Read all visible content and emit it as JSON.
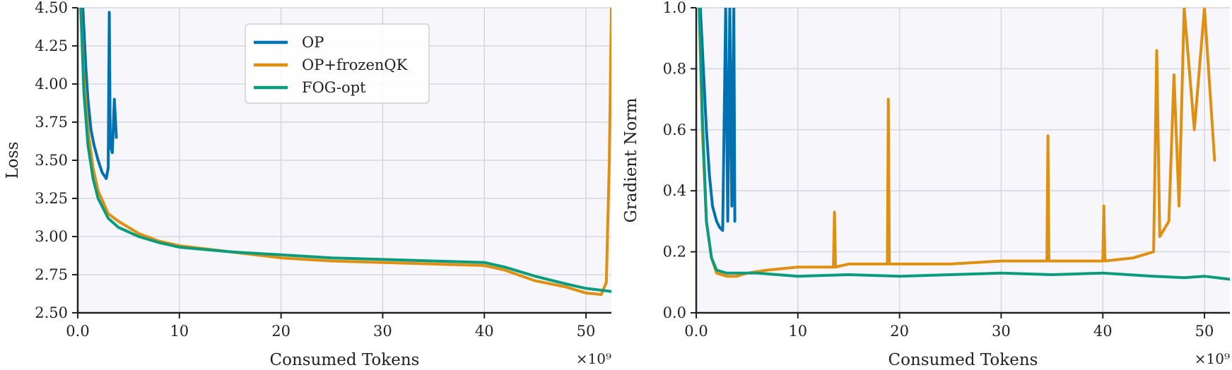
{
  "figure": {
    "exponent_label_left": "×10⁹",
    "exponent_label_right": "×10⁹"
  },
  "colors": {
    "OP": "#0072b2",
    "OP+frozenQK": "#e09010",
    "FOG-opt": "#0a9c7c",
    "plot_background": "#f6f6fb",
    "grid": "#d6d6dc"
  },
  "chart_data": [
    {
      "type": "line",
      "title": "",
      "xlabel": "Consumed Tokens",
      "ylabel": "Loss",
      "x_multiplier": "×10⁹",
      "xlim": [
        0,
        52.5
      ],
      "ylim": [
        2.5,
        4.5
      ],
      "xticks": [
        0,
        10,
        20,
        30,
        40,
        50
      ],
      "xtick_labels": [
        "0.0",
        "10",
        "20",
        "30",
        "40",
        "50"
      ],
      "yticks": [
        2.5,
        2.75,
        3.0,
        3.25,
        3.5,
        3.75,
        4.0,
        4.25,
        4.5
      ],
      "ytick_labels": [
        "2.50",
        "2.75",
        "3.00",
        "3.25",
        "3.50",
        "3.75",
        "4.00",
        "4.25",
        "4.50"
      ],
      "grid": true,
      "legend": {
        "position": "top-center",
        "entries": [
          "OP",
          "OP+frozenQK",
          "FOG-opt"
        ]
      },
      "series": [
        {
          "name": "OP",
          "x": [
            0.5,
            0.8,
            1.0,
            1.3,
            1.6,
            2.0,
            2.4,
            2.8,
            3.0,
            3.1,
            3.2,
            3.4,
            3.6,
            3.8
          ],
          "y": [
            4.5,
            4.1,
            3.9,
            3.7,
            3.6,
            3.5,
            3.42,
            3.38,
            3.45,
            4.47,
            3.6,
            3.55,
            3.9,
            3.65
          ]
        },
        {
          "name": "OP+frozenQK",
          "x": [
            0.3,
            0.6,
            1.0,
            1.5,
            2.0,
            3.0,
            4.0,
            6.0,
            8.0,
            10,
            15,
            20,
            25,
            30,
            35,
            40,
            42,
            45,
            48,
            50,
            51.5,
            52.0,
            52.3,
            52.5
          ],
          "y": [
            4.5,
            4.05,
            3.7,
            3.45,
            3.3,
            3.15,
            3.1,
            3.02,
            2.97,
            2.94,
            2.9,
            2.86,
            2.84,
            2.83,
            2.82,
            2.81,
            2.78,
            2.71,
            2.67,
            2.63,
            2.62,
            2.7,
            3.5,
            4.5
          ]
        },
        {
          "name": "FOG-opt",
          "x": [
            0.3,
            0.6,
            1.0,
            1.5,
            2.0,
            3.0,
            4.0,
            6.0,
            8.0,
            10,
            15,
            20,
            25,
            30,
            35,
            40,
            42,
            45,
            48,
            50,
            52.5
          ],
          "y": [
            4.5,
            3.95,
            3.6,
            3.38,
            3.25,
            3.12,
            3.06,
            3.0,
            2.96,
            2.93,
            2.9,
            2.88,
            2.86,
            2.85,
            2.84,
            2.83,
            2.8,
            2.74,
            2.69,
            2.66,
            2.64
          ]
        }
      ]
    },
    {
      "type": "line",
      "title": "",
      "xlabel": "Consumed Tokens",
      "ylabel": "Gradient Norm",
      "x_multiplier": "×10⁹",
      "xlim": [
        0,
        52.5
      ],
      "ylim": [
        0.0,
        1.0
      ],
      "xticks": [
        0,
        10,
        20,
        30,
        40,
        50
      ],
      "xtick_labels": [
        "0.0",
        "10",
        "20",
        "30",
        "40",
        "50"
      ],
      "yticks": [
        0.0,
        0.2,
        0.4,
        0.6,
        0.8,
        1.0
      ],
      "ytick_labels": [
        "0.0",
        "0.2",
        "0.4",
        "0.6",
        "0.8",
        "1.0"
      ],
      "grid": true,
      "legend": null,
      "series": [
        {
          "name": "OP",
          "x": [
            0.4,
            0.7,
            1.0,
            1.3,
            1.6,
            2.0,
            2.3,
            2.6,
            2.9,
            3.1,
            3.3,
            3.5,
            3.7,
            3.8
          ],
          "y": [
            1.0,
            0.8,
            0.6,
            0.45,
            0.35,
            0.3,
            0.28,
            0.27,
            1.0,
            0.3,
            1.0,
            0.35,
            1.0,
            0.3
          ]
        },
        {
          "name": "OP+frozenQK",
          "x": [
            0.3,
            0.6,
            1.0,
            1.5,
            2.0,
            3.0,
            4.0,
            5.0,
            7.0,
            10,
            13.5,
            13.6,
            13.7,
            15,
            18.8,
            18.9,
            19.0,
            25,
            30,
            34.5,
            34.6,
            34.7,
            38,
            40.0,
            40.1,
            40.2,
            43,
            45.0,
            45.3,
            45.6,
            46.5,
            47.0,
            47.5,
            48.0,
            49.0,
            50.0,
            51.0
          ],
          "y": [
            1.0,
            0.6,
            0.3,
            0.18,
            0.13,
            0.12,
            0.12,
            0.13,
            0.14,
            0.15,
            0.15,
            0.33,
            0.15,
            0.16,
            0.16,
            0.7,
            0.16,
            0.16,
            0.17,
            0.17,
            0.58,
            0.17,
            0.17,
            0.17,
            0.35,
            0.17,
            0.18,
            0.2,
            0.86,
            0.25,
            0.3,
            0.78,
            0.35,
            1.0,
            0.6,
            1.0,
            0.5
          ]
        },
        {
          "name": "FOG-opt",
          "x": [
            0.3,
            0.6,
            1.0,
            1.5,
            2.0,
            3.0,
            4.0,
            6.0,
            10,
            15,
            20,
            25,
            30,
            35,
            40,
            45,
            48,
            50,
            52.5
          ],
          "y": [
            1.0,
            0.65,
            0.3,
            0.18,
            0.14,
            0.13,
            0.13,
            0.13,
            0.12,
            0.125,
            0.12,
            0.125,
            0.13,
            0.125,
            0.13,
            0.12,
            0.115,
            0.12,
            0.11
          ]
        }
      ]
    }
  ]
}
